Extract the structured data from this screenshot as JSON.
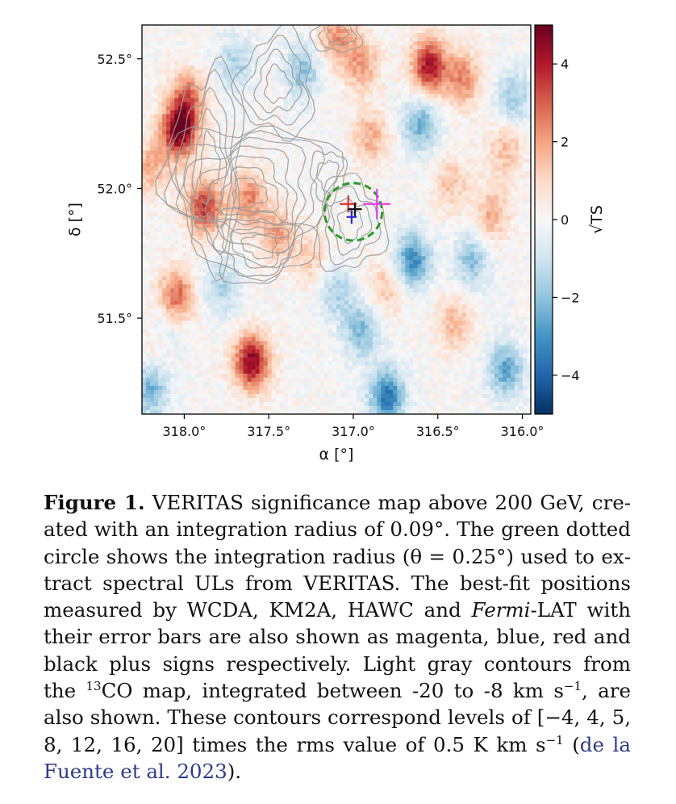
{
  "chart_data": {
    "type": "heatmap",
    "title": "",
    "xlabel": "α [°]",
    "ylabel": "δ [°]",
    "colorbar_label": "√TS",
    "colormap": "RdBu_r (blue = negative, white = 0, red = positive)",
    "x_axis_inverted": true,
    "xlim": [
      318.25,
      315.95
    ],
    "ylim": [
      51.13,
      52.63
    ],
    "x_ticks": [
      {
        "value": 318.0,
        "label": "318.0°"
      },
      {
        "value": 317.5,
        "label": "317.5°"
      },
      {
        "value": 317.0,
        "label": "317.0°"
      },
      {
        "value": 316.5,
        "label": "316.5°"
      },
      {
        "value": 316.0,
        "label": "316.0°"
      }
    ],
    "y_ticks": [
      {
        "value": 52.5,
        "label": "52.5°"
      },
      {
        "value": 52.0,
        "label": "52.0°"
      },
      {
        "value": 51.5,
        "label": "51.5°"
      }
    ],
    "colorbar": {
      "range": [
        -5,
        5
      ],
      "ticks": [
        {
          "value": 4,
          "label": "4"
        },
        {
          "value": 2,
          "label": "2"
        },
        {
          "value": 0,
          "label": "0"
        },
        {
          "value": -2,
          "label": "−2"
        },
        {
          "value": -4,
          "label": "−4"
        }
      ]
    },
    "significance_hotspots": [
      {
        "ra": 318.03,
        "dec": 52.22,
        "sqrt_ts": 4.8
      },
      {
        "ra": 317.88,
        "dec": 51.93,
        "sqrt_ts": 3.6
      },
      {
        "ra": 317.98,
        "dec": 52.35,
        "sqrt_ts": 2.6
      },
      {
        "ra": 316.55,
        "dec": 52.47,
        "sqrt_ts": 4.2
      },
      {
        "ra": 316.35,
        "dec": 52.42,
        "sqrt_ts": 2.4
      },
      {
        "ra": 317.6,
        "dec": 51.33,
        "sqrt_ts": 4.6
      },
      {
        "ra": 318.05,
        "dec": 51.58,
        "sqrt_ts": 3.0
      },
      {
        "ra": 318.15,
        "dec": 51.42,
        "sqrt_ts": 1.8
      },
      {
        "ra": 317.62,
        "dec": 51.96,
        "sqrt_ts": 2.4
      },
      {
        "ra": 317.45,
        "dec": 51.82,
        "sqrt_ts": 2.0
      },
      {
        "ra": 316.95,
        "dec": 52.48,
        "sqrt_ts": 2.0
      },
      {
        "ra": 317.1,
        "dec": 52.58,
        "sqrt_ts": 2.2
      },
      {
        "ra": 316.18,
        "dec": 51.9,
        "sqrt_ts": 1.8
      },
      {
        "ra": 316.1,
        "dec": 52.15,
        "sqrt_ts": 1.6
      },
      {
        "ra": 316.8,
        "dec": 51.62,
        "sqrt_ts": 1.4
      },
      {
        "ra": 316.4,
        "dec": 51.48,
        "sqrt_ts": 1.6
      },
      {
        "ra": 318.2,
        "dec": 52.08,
        "sqrt_ts": 1.8
      },
      {
        "ra": 316.9,
        "dec": 52.2,
        "sqrt_ts": 1.8
      },
      {
        "ra": 316.42,
        "dec": 52.02,
        "sqrt_ts": 1.4
      },
      {
        "ra": 317.25,
        "dec": 51.72,
        "sqrt_ts": 1.2
      },
      {
        "ra": 316.8,
        "dec": 51.2,
        "sqrt_ts": -3.6
      },
      {
        "ra": 316.65,
        "dec": 51.72,
        "sqrt_ts": -3.2
      },
      {
        "ra": 316.6,
        "dec": 52.25,
        "sqrt_ts": -2.4
      },
      {
        "ra": 318.12,
        "dec": 51.45,
        "sqrt_ts": -2.2
      },
      {
        "ra": 316.1,
        "dec": 51.3,
        "sqrt_ts": -2.6
      },
      {
        "ra": 316.95,
        "dec": 51.45,
        "sqrt_ts": -2.2
      },
      {
        "ra": 318.2,
        "dec": 51.22,
        "sqrt_ts": -2.4
      },
      {
        "ra": 317.3,
        "dec": 52.45,
        "sqrt_ts": -2.0
      },
      {
        "ra": 317.7,
        "dec": 52.48,
        "sqrt_ts": -1.6
      },
      {
        "ra": 316.3,
        "dec": 51.72,
        "sqrt_ts": -2.0
      },
      {
        "ra": 316.05,
        "dec": 52.35,
        "sqrt_ts": -1.8
      },
      {
        "ra": 317.78,
        "dec": 51.62,
        "sqrt_ts": -1.6
      },
      {
        "ra": 317.1,
        "dec": 51.6,
        "sqrt_ts": -1.6
      }
    ],
    "integration_circle": {
      "ra": 317.0,
      "dec": 51.91,
      "radius_deg": 0.25,
      "color": "#2a9a2a",
      "style": "dashed"
    },
    "best_fit_positions": [
      {
        "instrument": "WCDA",
        "color": "#e53be5",
        "ra": 316.86,
        "dec": 51.94,
        "err_ra": 0.08,
        "err_dec": 0.09
      },
      {
        "instrument": "KM2A",
        "color": "#2a2acf",
        "ra": 317.01,
        "dec": 51.89,
        "err_ra": 0.03,
        "err_dec": 0.04
      },
      {
        "instrument": "HAWC",
        "color": "#e02a2a",
        "ra": 317.03,
        "dec": 51.94,
        "err_ra": 0.05,
        "err_dec": 0.05
      },
      {
        "instrument": "Fermi-LAT",
        "color": "#111111",
        "ra": 316.99,
        "dec": 51.92,
        "err_ra": 0.04,
        "err_dec": 0.04
      }
    ],
    "contour_levels_rms": [
      -4,
      4,
      5,
      8,
      12,
      16,
      20
    ],
    "contour_color": "#9a9a9a"
  },
  "caption": {
    "label": "Figure 1.",
    "text_1": "VERITAS significance map above 200 GeV, cre­ated with an integration radius of 0.09°.  The green dotted circle shows the integration radius (θ = 0.25°) used to ex­tract spectral ULs from VERITAS. The best-fit positions measured by WCDA, KM2A, HAWC and ",
    "fermi_italic": "Fermi",
    "text_2": "-LAT with their error bars are also shown as magenta, blue, red and black plus signs respectively. Light gray contours from the ",
    "sup_13": "13",
    "text_3": "CO map, integrated between -20 to -8 km s",
    "sup_minus1_a": "−1",
    "text_4": ", are also shown. These contours correspond levels of [−4, 4, 5, 8, 12, 16, 20] times the rms value of 0.5 K km s",
    "sup_minus1_b": "−1",
    "text_5": " (",
    "citation": "de la Fuente et al. 2023",
    "text_6": ")."
  }
}
